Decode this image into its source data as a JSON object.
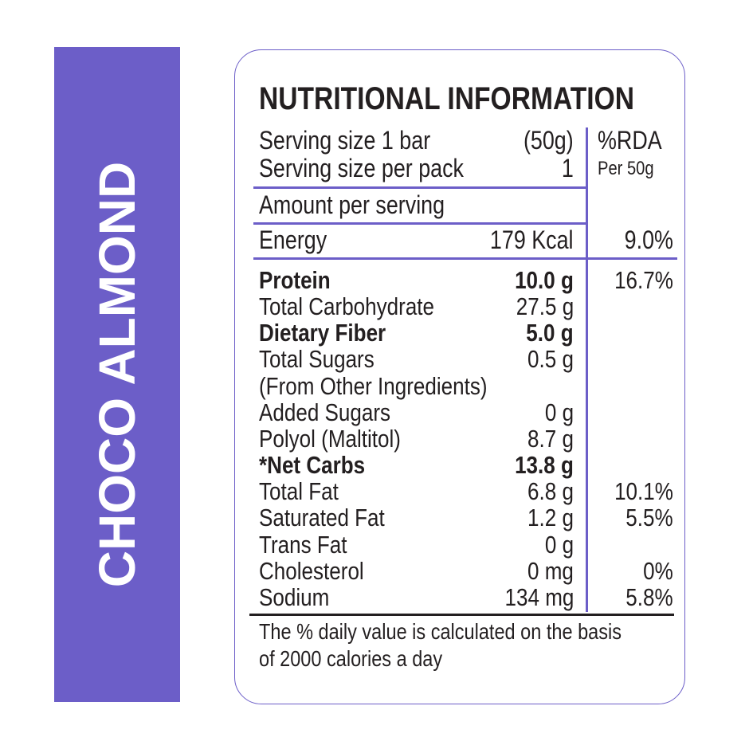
{
  "product_name": "CHOCO ALMOND",
  "title": "NUTRITIONAL INFORMATION",
  "serving": {
    "size_label": "Serving size 1 bar",
    "size_value": "(50g)",
    "per_pack_label": "Serving size per pack",
    "per_pack_value": "1",
    "rda_header": "%RDA",
    "rda_sub": "Per 50g"
  },
  "amount_per_serving": "Amount per serving",
  "energy": {
    "label": "Energy",
    "value": "179 Kcal",
    "rda": "9.0%"
  },
  "nutrients": [
    {
      "label": "Protein",
      "value": "10.0 g",
      "rda": "16.7%",
      "bold": true
    },
    {
      "label": "Total Carbohydrate",
      "value": "27.5 g",
      "rda": "",
      "bold": false
    },
    {
      "label": "Dietary Fiber",
      "value": "5.0 g",
      "rda": "",
      "bold": true
    },
    {
      "label": "Total Sugars",
      "value": "0.5 g",
      "rda": "",
      "bold": false
    },
    {
      "label": "(From Other Ingredients)",
      "value": "",
      "rda": "",
      "bold": false
    },
    {
      "label": "Added Sugars",
      "value": "0 g",
      "rda": "",
      "bold": false
    },
    {
      "label": "Polyol (Maltitol)",
      "value": "8.7 g",
      "rda": "",
      "bold": false
    },
    {
      "label": "*Net Carbs",
      "value": "13.8 g",
      "rda": "",
      "bold": true
    },
    {
      "label": "Total Fat",
      "value": "6.8 g",
      "rda": "10.1%",
      "bold": false
    },
    {
      "label": "Saturated Fat",
      "value": "1.2 g",
      "rda": "5.5%",
      "bold": false
    },
    {
      "label": "Trans Fat",
      "value": "0 g",
      "rda": "",
      "bold": false
    },
    {
      "label": "Cholesterol",
      "value": "0 mg",
      "rda": "0%",
      "bold": false
    },
    {
      "label": "Sodium",
      "value": "134 mg",
      "rda": "5.8%",
      "bold": false
    }
  ],
  "footnote": {
    "line1": "The % daily value is calculated on the basis",
    "line2": "of 2000 calories a day"
  },
  "colors": {
    "accent": "#6c5ec8",
    "text": "#231f20",
    "background": "#ffffff"
  }
}
